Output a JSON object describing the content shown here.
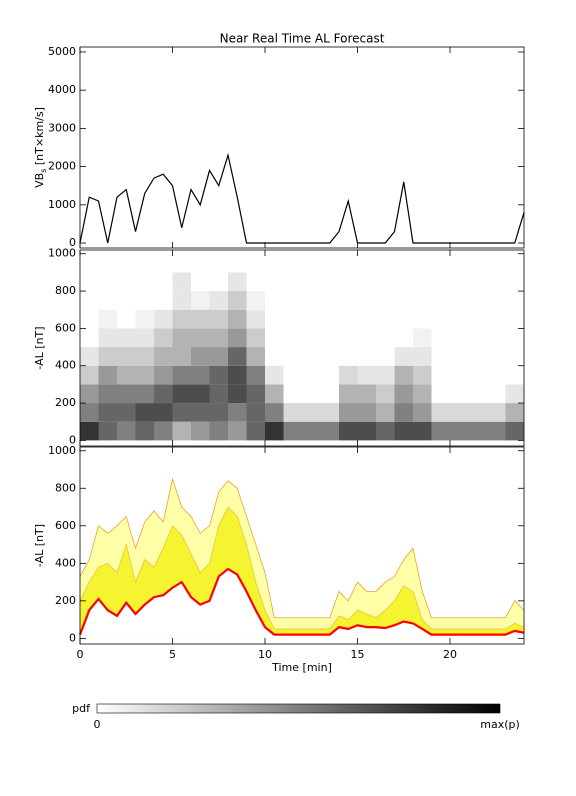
{
  "chart_data": [
    {
      "type": "line",
      "title": "Near Real Time AL Forecast",
      "ylabel": [
        "VB",
        "s",
        " [nT×km/s]"
      ],
      "x": [
        0,
        0.5,
        1,
        1.5,
        2,
        2.5,
        3,
        3.5,
        4,
        4.5,
        5,
        5.5,
        6,
        6.5,
        7,
        7.5,
        8,
        8.5,
        9,
        9.5,
        10,
        10.5,
        11,
        11.5,
        12,
        12.5,
        13,
        13.5,
        14,
        14.5,
        15,
        15.5,
        16,
        16.5,
        17,
        17.5,
        18,
        18.5,
        19,
        19.5,
        20,
        20.5,
        21,
        21.5,
        22,
        22.5,
        23,
        23.5,
        24
      ],
      "values": [
        0,
        1200,
        1100,
        0,
        1200,
        1400,
        300,
        1300,
        1700,
        1800,
        1500,
        400,
        1400,
        1000,
        1900,
        1500,
        2300,
        1200,
        0,
        0,
        0,
        0,
        0,
        0,
        0,
        0,
        0,
        0,
        300,
        1100,
        0,
        0,
        0,
        0,
        300,
        1600,
        0,
        0,
        0,
        0,
        0,
        0,
        0,
        0,
        0,
        0,
        0,
        0,
        800
      ],
      "color": "#000000",
      "xlim": [
        0,
        24
      ],
      "ylim": [
        -130,
        5130
      ],
      "xticks": [
        0,
        5,
        10,
        15,
        20
      ],
      "yticks": [
        0,
        1000,
        2000,
        3000,
        4000,
        5000
      ]
    },
    {
      "type": "heatmap",
      "ylabel": "-AL [nT]",
      "time_bins": [
        0,
        1,
        2,
        3,
        4,
        5,
        6,
        7,
        8,
        9,
        10,
        11,
        12,
        13,
        14,
        15,
        16,
        17,
        18,
        19,
        20,
        21,
        22,
        23,
        24
      ],
      "al_bins": [
        0,
        100,
        200,
        300,
        400,
        500,
        600,
        700,
        800,
        900,
        1000
      ],
      "pdf": [
        [
          0.8,
          0.5,
          0.4,
          0.2,
          0.1,
          0,
          0,
          0,
          0,
          0
        ],
        [
          0.6,
          0.6,
          0.5,
          0.4,
          0.2,
          0.1,
          0.05,
          0,
          0,
          0
        ],
        [
          0.5,
          0.6,
          0.5,
          0.3,
          0.2,
          0.1,
          0,
          0,
          0,
          0
        ],
        [
          0.6,
          0.7,
          0.5,
          0.3,
          0.2,
          0.1,
          0.05,
          0,
          0,
          0
        ],
        [
          0.5,
          0.7,
          0.6,
          0.4,
          0.3,
          0.2,
          0.1,
          0,
          0,
          0
        ],
        [
          0.3,
          0.6,
          0.7,
          0.5,
          0.3,
          0.3,
          0.2,
          0.1,
          0.1,
          0
        ],
        [
          0.4,
          0.6,
          0.7,
          0.5,
          0.4,
          0.3,
          0.2,
          0.05,
          0,
          0
        ],
        [
          0.5,
          0.6,
          0.6,
          0.6,
          0.4,
          0.3,
          0.2,
          0.1,
          0,
          0
        ],
        [
          0.4,
          0.5,
          0.7,
          0.7,
          0.6,
          0.4,
          0.3,
          0.2,
          0.1,
          0
        ],
        [
          0.6,
          0.6,
          0.6,
          0.5,
          0.3,
          0.2,
          0.1,
          0.05,
          0,
          0
        ],
        [
          0.8,
          0.5,
          0.3,
          0.1,
          0,
          0,
          0,
          0,
          0,
          0
        ],
        [
          0.5,
          0.15,
          0,
          0,
          0,
          0,
          0,
          0,
          0,
          0
        ],
        [
          0.5,
          0.15,
          0,
          0,
          0,
          0,
          0,
          0,
          0,
          0
        ],
        [
          0.5,
          0.15,
          0,
          0,
          0,
          0,
          0,
          0,
          0,
          0
        ],
        [
          0.7,
          0.4,
          0.3,
          0.15,
          0,
          0,
          0,
          0,
          0,
          0
        ],
        [
          0.7,
          0.4,
          0.3,
          0.1,
          0,
          0,
          0,
          0,
          0,
          0
        ],
        [
          0.6,
          0.3,
          0.2,
          0.1,
          0,
          0,
          0,
          0,
          0,
          0
        ],
        [
          0.7,
          0.5,
          0.4,
          0.3,
          0.1,
          0,
          0,
          0,
          0,
          0
        ],
        [
          0.7,
          0.4,
          0.3,
          0.2,
          0.1,
          0.05,
          0,
          0,
          0,
          0
        ],
        [
          0.5,
          0.15,
          0,
          0,
          0,
          0,
          0,
          0,
          0,
          0
        ],
        [
          0.5,
          0.15,
          0,
          0,
          0,
          0,
          0,
          0,
          0,
          0
        ],
        [
          0.5,
          0.15,
          0,
          0,
          0,
          0,
          0,
          0,
          0,
          0
        ],
        [
          0.5,
          0.15,
          0,
          0,
          0,
          0,
          0,
          0,
          0,
          0
        ],
        [
          0.6,
          0.3,
          0.1,
          0,
          0,
          0,
          0,
          0,
          0,
          0
        ]
      ],
      "xlim": [
        0,
        24
      ],
      "ylim": [
        -30,
        1020
      ],
      "xticks": [
        0,
        5,
        10,
        15,
        20
      ],
      "yticks": [
        0,
        200,
        400,
        600,
        800,
        1000
      ]
    },
    {
      "type": "band",
      "ylabel": "-AL [nT]",
      "xlabel": "Time [min]",
      "x": [
        0,
        0.5,
        1,
        1.5,
        2,
        2.5,
        3,
        3.5,
        4,
        4.5,
        5,
        5.5,
        6,
        6.5,
        7,
        7.5,
        8,
        8.5,
        9,
        9.5,
        10,
        10.5,
        11,
        11.5,
        12,
        12.5,
        13,
        13.5,
        14,
        14.5,
        15,
        15.5,
        16,
        16.5,
        17,
        17.5,
        18,
        18.5,
        19,
        19.5,
        20,
        20.5,
        21,
        21.5,
        22,
        22.5,
        23,
        23.5,
        24
      ],
      "series": [
        {
          "color": "#ffffa8",
          "line_color": "#f0a030",
          "values": [
            330,
            420,
            600,
            560,
            600,
            650,
            480,
            620,
            680,
            620,
            850,
            700,
            650,
            560,
            600,
            780,
            840,
            800,
            650,
            500,
            350,
            110,
            110,
            110,
            110,
            110,
            110,
            110,
            250,
            200,
            300,
            250,
            250,
            300,
            330,
            420,
            480,
            250,
            110,
            110,
            110,
            110,
            110,
            110,
            110,
            110,
            110,
            200,
            150
          ]
        },
        {
          "color": "#f4f430",
          "line_color": "#f0c040",
          "values": [
            200,
            300,
            380,
            400,
            350,
            500,
            300,
            420,
            380,
            480,
            600,
            550,
            450,
            350,
            400,
            600,
            700,
            650,
            500,
            300,
            150,
            50,
            50,
            50,
            50,
            50,
            50,
            50,
            120,
            100,
            150,
            130,
            110,
            150,
            200,
            280,
            250,
            100,
            50,
            50,
            50,
            50,
            50,
            50,
            50,
            50,
            50,
            80,
            60
          ]
        },
        {
          "color": "#ffffff",
          "line_color": "#ff0000",
          "values": [
            20,
            150,
            210,
            150,
            120,
            190,
            130,
            180,
            220,
            230,
            270,
            300,
            220,
            180,
            200,
            330,
            370,
            340,
            250,
            150,
            60,
            20,
            20,
            20,
            20,
            20,
            20,
            20,
            60,
            50,
            70,
            60,
            60,
            55,
            70,
            90,
            80,
            50,
            20,
            20,
            20,
            20,
            20,
            20,
            20,
            20,
            20,
            40,
            30
          ]
        }
      ],
      "xlim": [
        0,
        24
      ],
      "ylim": [
        -30,
        1020
      ],
      "xticks": [
        0,
        5,
        10,
        15,
        20
      ],
      "yticks": [
        0,
        200,
        400,
        600,
        800,
        1000
      ]
    }
  ],
  "colorbar": {
    "label": "pdf",
    "min_label": "0",
    "max_label": "max(p)"
  }
}
